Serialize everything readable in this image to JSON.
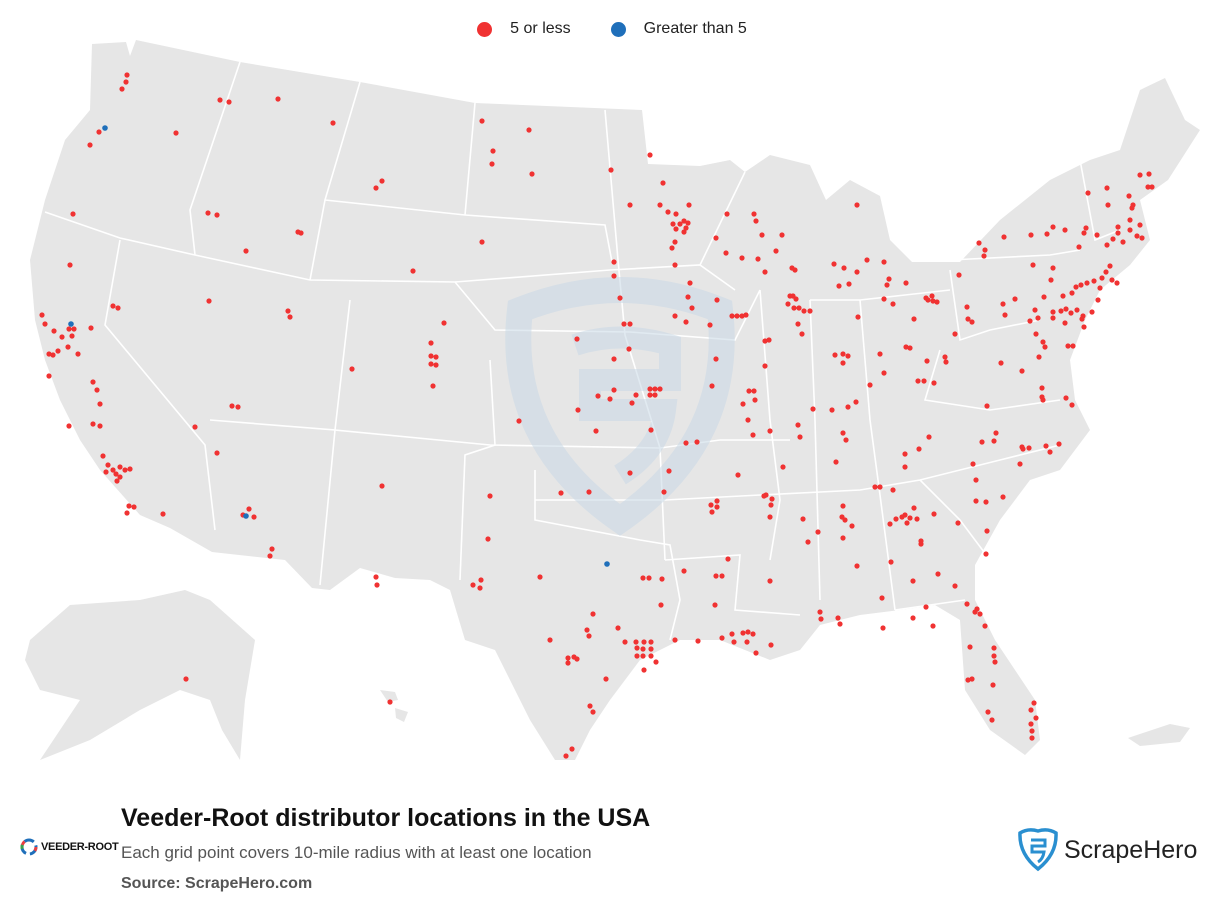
{
  "legend": {
    "items": [
      {
        "label": "5 or less",
        "color": "#f03232"
      },
      {
        "label": "Greater than 5",
        "color": "#1f6fba"
      }
    ]
  },
  "title": "Veeder-Root distributor locations in the USA",
  "subtitle": "Each grid point covers 10-mile radius with at least one location",
  "source": "Source: ScrapeHero.com",
  "logos": {
    "brand": "VEEDER-ROOT",
    "publisher": "ScrapeHero"
  },
  "colors": {
    "land": "#e6e6e6",
    "border": "#ffffff",
    "low": "#f03232",
    "high": "#1f6fba",
    "watermark": "#c9d9e6"
  }
}
